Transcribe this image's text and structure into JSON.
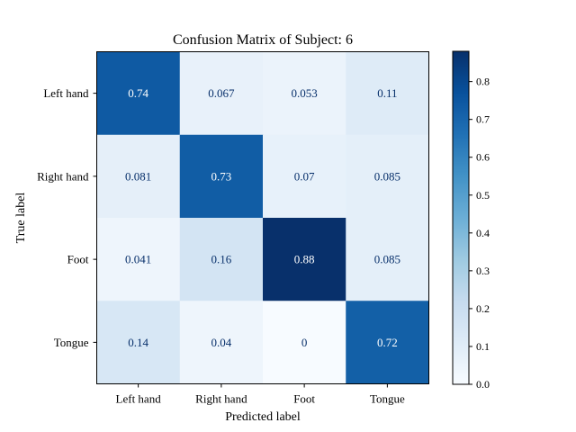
{
  "chart_data": {
    "type": "heatmap",
    "title": "Confusion Matrix of Subject: 6",
    "xlabel": "Predicted label",
    "ylabel": "True label",
    "x_categories": [
      "Left hand",
      "Right hand",
      "Foot",
      "Tongue"
    ],
    "y_categories": [
      "Left hand",
      "Right hand",
      "Foot",
      "Tongue"
    ],
    "values": [
      [
        0.74,
        0.067,
        0.053,
        0.11
      ],
      [
        0.081,
        0.73,
        0.07,
        0.085
      ],
      [
        0.041,
        0.16,
        0.88,
        0.085
      ],
      [
        0.14,
        0.04,
        0,
        0.72
      ]
    ],
    "cell_labels": [
      [
        "0.74",
        "0.067",
        "0.053",
        "0.11"
      ],
      [
        "0.081",
        "0.73",
        "0.07",
        "0.085"
      ],
      [
        "0.041",
        "0.16",
        "0.88",
        "0.085"
      ],
      [
        "0.14",
        "0.04",
        "0",
        "0.72"
      ]
    ],
    "colormap": "Blues",
    "colorbar": {
      "vmin": 0.0,
      "vmax": 0.88,
      "ticks": [
        0.0,
        0.1,
        0.2,
        0.3,
        0.4,
        0.5,
        0.6,
        0.7,
        0.8
      ],
      "tick_labels": [
        "0.0",
        "0.1",
        "0.2",
        "0.3",
        "0.4",
        "0.5",
        "0.6",
        "0.7",
        "0.8"
      ]
    },
    "grid": false
  }
}
